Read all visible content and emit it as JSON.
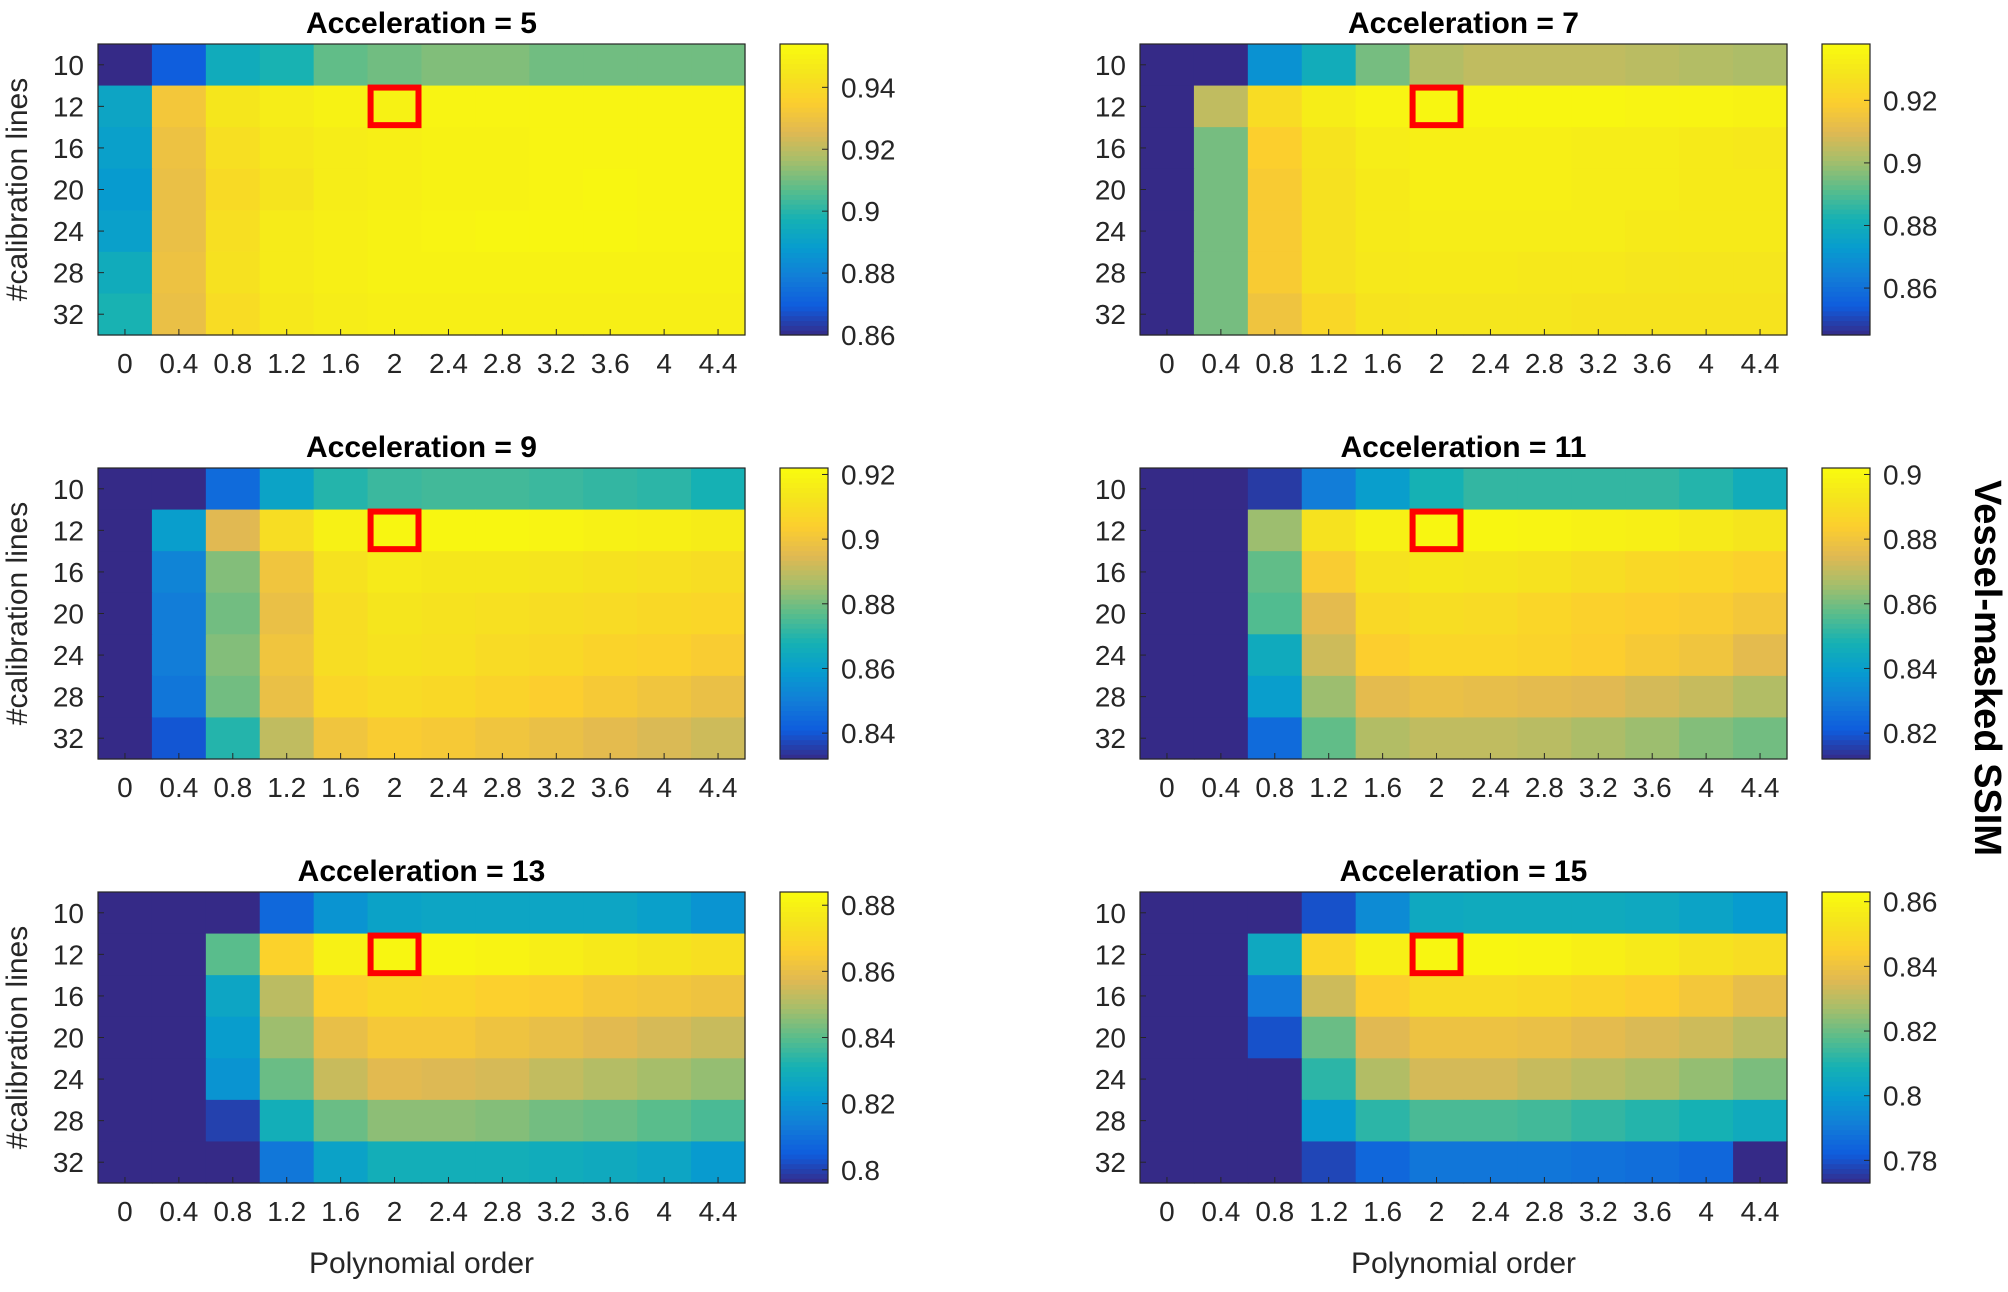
{
  "chart_data": {
    "type": "heatmap",
    "x": [
      "0",
      "0.4",
      "0.8",
      "1.2",
      "1.6",
      "2",
      "2.4",
      "2.8",
      "3.2",
      "3.6",
      "4",
      "4.4"
    ],
    "y": [
      "10",
      "12",
      "16",
      "20",
      "24",
      "28",
      "32"
    ],
    "xlabel": "Polynomial order",
    "ylabel": "#calibration lines",
    "colorbar_label": "Vessel-masked SSIM",
    "colormap": "parula",
    "highlight": {
      "x": "2",
      "y": "12",
      "color": "#ff0000"
    },
    "panels": [
      {
        "title": "Acceleration = 5",
        "clim": [
          0.86,
          0.954
        ],
        "ticks": [
          "0.86",
          "0.88",
          "0.9",
          "0.92",
          "0.94"
        ],
        "values": [
          [
            0.86,
            0.87,
            0.895,
            0.898,
            0.908,
            0.91,
            0.912,
            0.912,
            0.91,
            0.91,
            0.91,
            0.91
          ],
          [
            0.892,
            0.932,
            0.945,
            0.948,
            0.95,
            0.95,
            0.951,
            0.951,
            0.951,
            0.951,
            0.951,
            0.951
          ],
          [
            0.89,
            0.93,
            0.942,
            0.946,
            0.948,
            0.949,
            0.95,
            0.95,
            0.951,
            0.951,
            0.951,
            0.951
          ],
          [
            0.888,
            0.929,
            0.94,
            0.944,
            0.948,
            0.949,
            0.95,
            0.95,
            0.951,
            0.952,
            0.951,
            0.951
          ],
          [
            0.89,
            0.929,
            0.942,
            0.947,
            0.949,
            0.95,
            0.951,
            0.952,
            0.952,
            0.952,
            0.951,
            0.951
          ],
          [
            0.895,
            0.93,
            0.943,
            0.947,
            0.949,
            0.95,
            0.95,
            0.95,
            0.95,
            0.95,
            0.95,
            0.95
          ],
          [
            0.898,
            0.929,
            0.941,
            0.946,
            0.948,
            0.949,
            0.949,
            0.949,
            0.949,
            0.949,
            0.949,
            0.949
          ]
        ]
      },
      {
        "title": "Acceleration = 7",
        "clim": [
          0.845,
          0.938
        ],
        "ticks": [
          "0.86",
          "0.88",
          "0.9",
          "0.92"
        ],
        "values": [
          [
            0.845,
            0.845,
            0.87,
            0.88,
            0.895,
            0.903,
            0.905,
            0.905,
            0.905,
            0.904,
            0.903,
            0.902
          ],
          [
            0.845,
            0.905,
            0.925,
            0.932,
            0.935,
            0.936,
            0.936,
            0.936,
            0.936,
            0.935,
            0.935,
            0.934
          ],
          [
            0.845,
            0.895,
            0.92,
            0.928,
            0.932,
            0.933,
            0.933,
            0.933,
            0.932,
            0.932,
            0.931,
            0.93
          ],
          [
            0.845,
            0.895,
            0.918,
            0.927,
            0.931,
            0.933,
            0.933,
            0.933,
            0.932,
            0.932,
            0.931,
            0.931
          ],
          [
            0.845,
            0.895,
            0.918,
            0.927,
            0.931,
            0.932,
            0.932,
            0.932,
            0.932,
            0.931,
            0.931,
            0.931
          ],
          [
            0.845,
            0.895,
            0.918,
            0.927,
            0.93,
            0.931,
            0.931,
            0.93,
            0.93,
            0.929,
            0.929,
            0.929
          ],
          [
            0.845,
            0.895,
            0.915,
            0.923,
            0.928,
            0.929,
            0.929,
            0.929,
            0.928,
            0.928,
            0.928,
            0.928
          ]
        ]
      },
      {
        "title": "Acceleration = 9",
        "clim": [
          0.832,
          0.922
        ],
        "ticks": [
          "0.84",
          "0.86",
          "0.88",
          "0.9",
          "0.92"
        ],
        "values": [
          [
            0.832,
            0.832,
            0.845,
            0.862,
            0.87,
            0.873,
            0.874,
            0.874,
            0.873,
            0.872,
            0.871,
            0.868
          ],
          [
            0.832,
            0.86,
            0.895,
            0.91,
            0.918,
            0.92,
            0.92,
            0.92,
            0.919,
            0.918,
            0.917,
            0.916
          ],
          [
            0.832,
            0.852,
            0.882,
            0.9,
            0.912,
            0.915,
            0.914,
            0.914,
            0.913,
            0.912,
            0.911,
            0.91
          ],
          [
            0.832,
            0.85,
            0.88,
            0.898,
            0.91,
            0.913,
            0.912,
            0.911,
            0.91,
            0.909,
            0.908,
            0.907
          ],
          [
            0.832,
            0.85,
            0.882,
            0.9,
            0.91,
            0.912,
            0.911,
            0.909,
            0.908,
            0.906,
            0.905,
            0.903
          ],
          [
            0.832,
            0.848,
            0.88,
            0.898,
            0.907,
            0.909,
            0.908,
            0.906,
            0.904,
            0.902,
            0.9,
            0.898
          ],
          [
            0.832,
            0.84,
            0.87,
            0.89,
            0.9,
            0.903,
            0.902,
            0.9,
            0.898,
            0.896,
            0.894,
            0.892
          ]
        ]
      },
      {
        "title": "Acceleration = 11",
        "clim": [
          0.812,
          0.902
        ],
        "ticks": [
          "0.82",
          "0.84",
          "0.86",
          "0.88",
          "0.9"
        ],
        "values": [
          [
            0.812,
            0.812,
            0.815,
            0.83,
            0.84,
            0.848,
            0.852,
            0.852,
            0.852,
            0.852,
            0.85,
            0.846
          ],
          [
            0.812,
            0.812,
            0.865,
            0.892,
            0.898,
            0.9,
            0.9,
            0.899,
            0.898,
            0.897,
            0.895,
            0.893
          ],
          [
            0.812,
            0.812,
            0.858,
            0.883,
            0.892,
            0.894,
            0.893,
            0.892,
            0.89,
            0.888,
            0.887,
            0.885
          ],
          [
            0.812,
            0.812,
            0.856,
            0.876,
            0.888,
            0.89,
            0.889,
            0.887,
            0.885,
            0.884,
            0.883,
            0.881
          ],
          [
            0.812,
            0.812,
            0.845,
            0.872,
            0.884,
            0.887,
            0.887,
            0.886,
            0.884,
            0.882,
            0.88,
            0.876
          ],
          [
            0.812,
            0.812,
            0.84,
            0.865,
            0.876,
            0.878,
            0.877,
            0.876,
            0.875,
            0.873,
            0.871,
            0.868
          ],
          [
            0.812,
            0.812,
            0.825,
            0.858,
            0.868,
            0.87,
            0.87,
            0.869,
            0.867,
            0.865,
            0.862,
            0.86
          ]
        ]
      },
      {
        "title": "Acceleration = 13",
        "clim": [
          0.796,
          0.884
        ],
        "ticks": [
          "0.8",
          "0.82",
          "0.84",
          "0.86",
          "0.88"
        ],
        "values": [
          [
            0.796,
            0.796,
            0.796,
            0.808,
            0.82,
            0.825,
            0.826,
            0.826,
            0.826,
            0.826,
            0.824,
            0.82
          ],
          [
            0.796,
            0.796,
            0.84,
            0.868,
            0.88,
            0.882,
            0.882,
            0.881,
            0.879,
            0.877,
            0.875,
            0.873
          ],
          [
            0.796,
            0.796,
            0.826,
            0.852,
            0.867,
            0.87,
            0.869,
            0.867,
            0.866,
            0.864,
            0.863,
            0.862
          ],
          [
            0.796,
            0.796,
            0.823,
            0.848,
            0.86,
            0.864,
            0.864,
            0.862,
            0.86,
            0.858,
            0.856,
            0.854
          ],
          [
            0.796,
            0.796,
            0.82,
            0.842,
            0.854,
            0.858,
            0.857,
            0.856,
            0.853,
            0.851,
            0.849,
            0.847
          ],
          [
            0.796,
            0.796,
            0.8,
            0.83,
            0.842,
            0.846,
            0.846,
            0.845,
            0.843,
            0.842,
            0.84,
            0.838
          ],
          [
            0.796,
            0.796,
            0.796,
            0.812,
            0.825,
            0.83,
            0.83,
            0.83,
            0.829,
            0.828,
            0.826,
            0.822
          ]
        ]
      },
      {
        "title": "Acceleration = 15",
        "clim": [
          0.773,
          0.863
        ],
        "ticks": [
          "0.78",
          "0.8",
          "0.82",
          "0.84",
          "0.86"
        ],
        "values": [
          [
            0.773,
            0.773,
            0.773,
            0.78,
            0.795,
            0.805,
            0.806,
            0.806,
            0.806,
            0.805,
            0.803,
            0.8
          ],
          [
            0.773,
            0.773,
            0.805,
            0.848,
            0.858,
            0.861,
            0.861,
            0.86,
            0.858,
            0.856,
            0.853,
            0.851
          ],
          [
            0.773,
            0.773,
            0.79,
            0.833,
            0.845,
            0.85,
            0.85,
            0.849,
            0.847,
            0.845,
            0.842,
            0.838
          ],
          [
            0.773,
            0.773,
            0.78,
            0.82,
            0.836,
            0.84,
            0.84,
            0.839,
            0.837,
            0.835,
            0.833,
            0.83
          ],
          [
            0.773,
            0.773,
            0.773,
            0.812,
            0.829,
            0.834,
            0.834,
            0.832,
            0.83,
            0.828,
            0.825,
            0.822
          ],
          [
            0.773,
            0.773,
            0.773,
            0.8,
            0.812,
            0.816,
            0.816,
            0.815,
            0.813,
            0.811,
            0.809,
            0.806
          ],
          [
            0.773,
            0.773,
            0.773,
            0.778,
            0.785,
            0.789,
            0.789,
            0.789,
            0.788,
            0.787,
            0.785,
            0.773
          ]
        ]
      }
    ]
  }
}
